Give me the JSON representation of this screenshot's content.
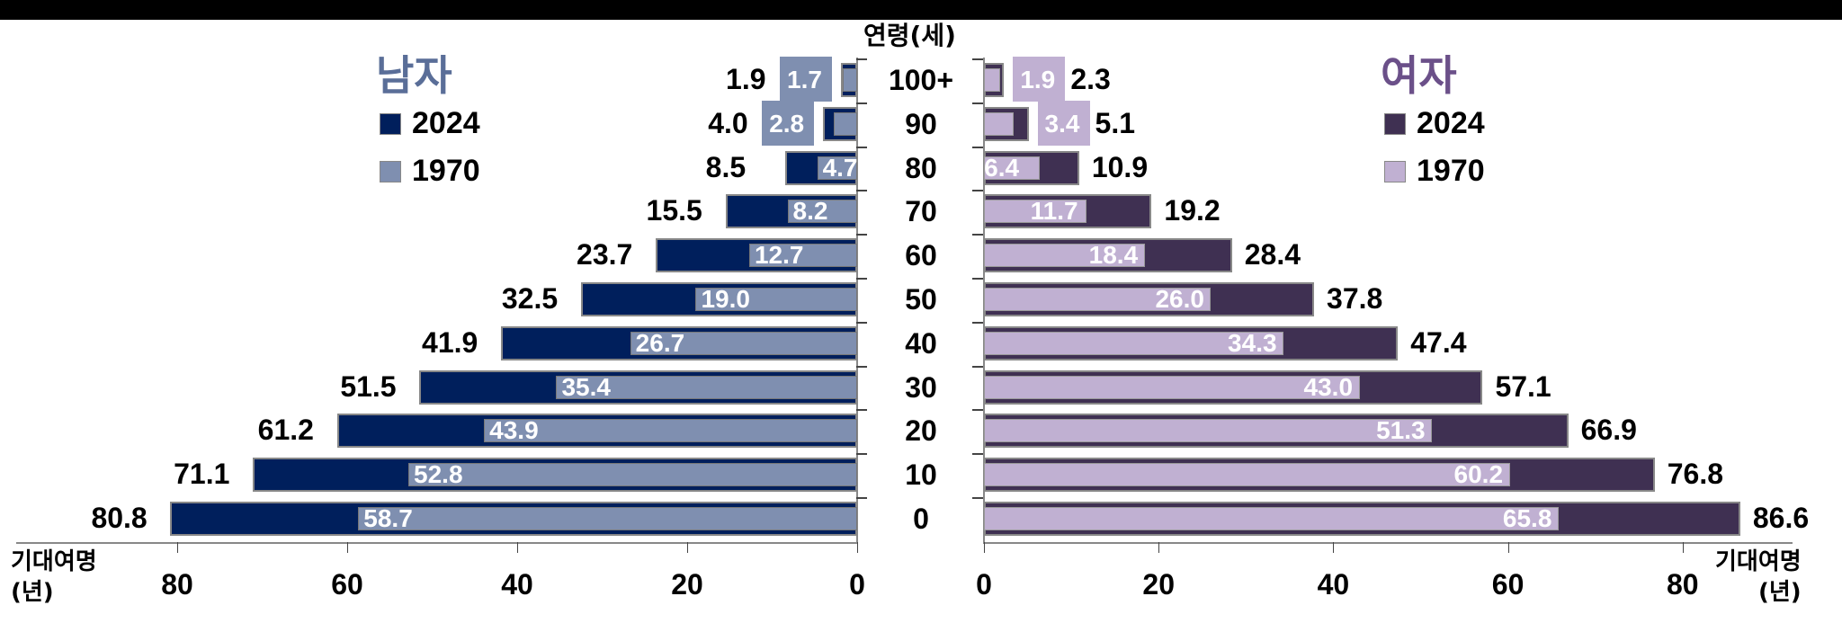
{
  "chart_data": {
    "type": "bar",
    "subtype": "population-pyramid (back-to-back horizontal bars, overlapping series)",
    "title": "",
    "y_axis_title": "연령(세)",
    "x_axis_title": "기대여명 (년)",
    "categories": [
      "100+",
      "90",
      "80",
      "70",
      "60",
      "50",
      "40",
      "30",
      "20",
      "10",
      "0"
    ],
    "panels": [
      {
        "name": "남자",
        "side": "left",
        "xlim": [
          0,
          80
        ],
        "xticks": [
          80,
          60,
          40,
          20,
          0
        ],
        "series": [
          {
            "name": "2024",
            "color": "#001f5c",
            "values": [
              1.9,
              4.0,
              8.5,
              15.5,
              23.7,
              32.5,
              41.9,
              51.5,
              61.2,
              71.1,
              80.8
            ]
          },
          {
            "name": "1970",
            "color": "#7f8fb0",
            "values": [
              1.7,
              2.8,
              4.7,
              8.2,
              12.7,
              19.0,
              26.7,
              35.4,
              43.9,
              52.8,
              58.7
            ]
          }
        ]
      },
      {
        "name": "여자",
        "side": "right",
        "xlim": [
          0,
          80
        ],
        "xticks": [
          0,
          20,
          40,
          60,
          80
        ],
        "series": [
          {
            "name": "2024",
            "color": "#3f3052",
            "values": [
              2.3,
              5.1,
              10.9,
              19.2,
              28.4,
              37.8,
              47.4,
              57.1,
              66.9,
              76.8,
              86.6
            ]
          },
          {
            "name": "1970",
            "color": "#c0b0d2",
            "values": [
              1.9,
              3.4,
              6.4,
              11.7,
              18.4,
              26.0,
              34.3,
              43.0,
              51.3,
              60.2,
              65.8
            ]
          }
        ]
      }
    ],
    "legend_position": "top of each panel",
    "grid": false
  },
  "labels": {
    "male_title": "남자",
    "female_title": "여자",
    "age_title": "연령(세)",
    "legend_2024": "2024",
    "legend_1970": "1970",
    "xaxis_unit_line1": "기대여명",
    "xaxis_unit_line2": "(년)"
  },
  "colors": {
    "male_2024": "#001f5c",
    "male_1970": "#7f8fb0",
    "female_2024": "#3f3052",
    "female_1970": "#c0b0d2",
    "male_title": "#5a6e98",
    "female_title": "#6b5089"
  }
}
